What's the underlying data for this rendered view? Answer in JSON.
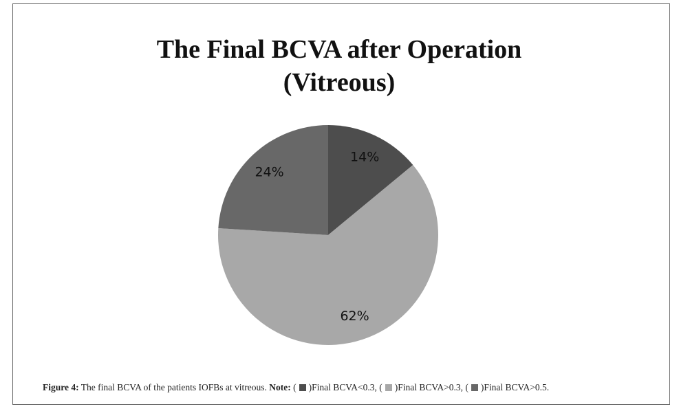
{
  "chart_data": {
    "type": "pie",
    "title": "The Final BCVA after Operation (Vitreous)",
    "categories": [
      "Final BCVA<0.3",
      "Final BCVA>0.3",
      "Final BCVA>0.5"
    ],
    "values": [
      14,
      62,
      24
    ],
    "value_labels": [
      "14%",
      "62%",
      "24%"
    ],
    "colors": [
      "#4d4d4d",
      "#a8a8a8",
      "#686868"
    ]
  },
  "caption": {
    "label": "Figure 4:",
    "text": "The final BCVA of the patients IOFBs at vitreous.",
    "note": "Note:",
    "open": "(",
    "close": ")",
    "separator": ",",
    "end": "."
  }
}
